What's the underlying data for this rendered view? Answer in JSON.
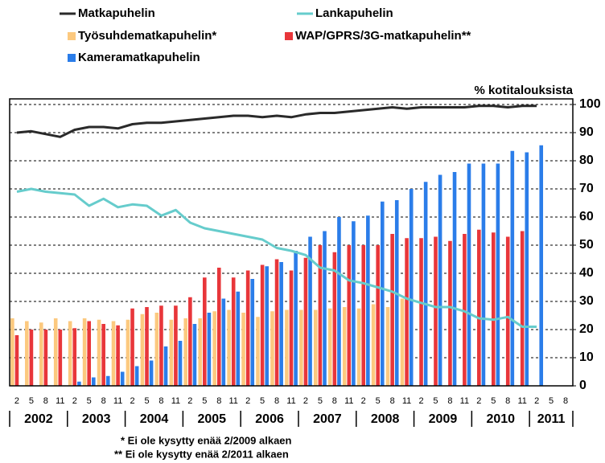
{
  "chart_data": {
    "type": "combo",
    "y_label": "% kotitalouksista",
    "categories": [
      "2",
      "5",
      "8",
      "11",
      "2",
      "5",
      "8",
      "11",
      "2",
      "5",
      "8",
      "11",
      "2",
      "5",
      "8",
      "11",
      "2",
      "5",
      "8",
      "11",
      "2",
      "5",
      "8",
      "11",
      "2",
      "5",
      "8",
      "11",
      "2",
      "5",
      "8",
      "11",
      "2",
      "5",
      "8",
      "11",
      "2",
      "5",
      "8"
    ],
    "years": [
      "2002",
      "2003",
      "2004",
      "2005",
      "2006",
      "2007",
      "2008",
      "2009",
      "2010",
      "2011"
    ],
    "series": [
      {
        "name": "Matkapuhelin",
        "mark": "line",
        "color": "#2a2a2a",
        "values": [
          90,
          90.5,
          89.5,
          88.5,
          91,
          92,
          92,
          91.5,
          93,
          93.5,
          93.5,
          94,
          94.5,
          95,
          95.5,
          96,
          96,
          95.5,
          96,
          95.5,
          96.5,
          97,
          97,
          97.5,
          98,
          98.5,
          99,
          98.5,
          99,
          99,
          99,
          99,
          99.5,
          99.5,
          99,
          99.5,
          99.5,
          null,
          null
        ]
      },
      {
        "name": "Lankapuhelin",
        "mark": "line",
        "color": "#66cccc",
        "values": [
          69,
          70,
          69,
          68.5,
          68,
          64,
          66.5,
          63.5,
          64.5,
          64,
          60.5,
          62.5,
          58,
          56,
          55,
          54,
          53,
          52,
          49,
          48,
          46.5,
          42,
          41,
          37.5,
          36.5,
          35,
          33.5,
          31,
          29.5,
          28,
          28,
          26.5,
          24,
          23.5,
          24.5,
          21,
          21,
          null,
          null
        ]
      },
      {
        "name": "Työsuhdematkapuhelin*",
        "mark": "bar",
        "color": "#fcc97f",
        "values": [
          24,
          23,
          22.5,
          24,
          23,
          24,
          23.5,
          23,
          23.5,
          25.5,
          26,
          23.5,
          24,
          24,
          26.5,
          27,
          26,
          24.5,
          26.5,
          27,
          27,
          27,
          27.5,
          28,
          27.5,
          29,
          28,
          31,
          null,
          null,
          null,
          null,
          null,
          null,
          null,
          null,
          null,
          null,
          null
        ]
      },
      {
        "name": "WAP/GPRS/3G-matkapuhelin**",
        "mark": "bar",
        "color": "#e8363a",
        "values": [
          18,
          20,
          20,
          20,
          20.5,
          23,
          22,
          21.5,
          27.5,
          28,
          28.5,
          28.5,
          31.5,
          38.5,
          42,
          38.5,
          41,
          43,
          45,
          41,
          45.5,
          50,
          47.5,
          50,
          50,
          50,
          54,
          52.5,
          52.5,
          53,
          51.5,
          54,
          55.5,
          54.5,
          53,
          55,
          null,
          null,
          null
        ]
      },
      {
        "name": "Kameramatkapuhelin",
        "mark": "bar",
        "color": "#2b7de9",
        "values": [
          null,
          null,
          null,
          null,
          1.5,
          3,
          3.5,
          5,
          7,
          9,
          14,
          16,
          22,
          26,
          31,
          33.5,
          38,
          42.5,
          44,
          48,
          53,
          55,
          60,
          58.5,
          60.5,
          65.5,
          66,
          70,
          72.5,
          75,
          76,
          79,
          79,
          79,
          83.5,
          83,
          85.5,
          null,
          null
        ]
      }
    ],
    "ylim": [
      0,
      102
    ],
    "yticks": [
      0,
      10,
      20,
      30,
      40,
      50,
      60,
      70,
      80,
      90,
      100
    ],
    "grid": true,
    "footnotes": [
      "* Ei ole kysytty enää 2/2009 alkaen",
      "** Ei ole kysytty enää 2/2011 alkaen"
    ]
  }
}
